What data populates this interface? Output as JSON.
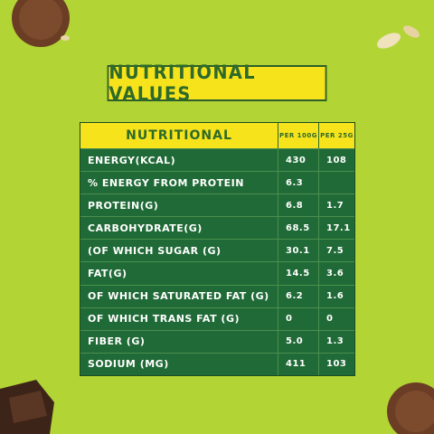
{
  "title": "NUTRITIONAL VALUES",
  "table": {
    "header": [
      "NUTRITIONAL",
      "PER 100G",
      "PER 25G"
    ],
    "rows": [
      [
        "ENERGY(KCAL)",
        "430",
        "108"
      ],
      [
        "% ENERGY FROM PROTEIN",
        "6.3"
      ],
      [
        "PROTEIN(G)",
        "6.8",
        "1.7"
      ],
      [
        "CARBOHYDRATE(G)",
        "68.5",
        "17.1"
      ],
      [
        "(OF WHICH SUGAR (G)",
        "30.1",
        "7.5"
      ],
      [
        "FAT(G)",
        "14.5",
        "3.6"
      ],
      [
        "OF WHICH SATURATED FAT (G)",
        "6.2",
        "1.6"
      ],
      [
        "OF WHICH TRANS FAT (G)",
        "0",
        "0"
      ],
      [
        "FIBER (G)",
        "5.0",
        "1.3"
      ],
      [
        "SODIUM (MG)",
        "411",
        "103"
      ]
    ]
  }
}
